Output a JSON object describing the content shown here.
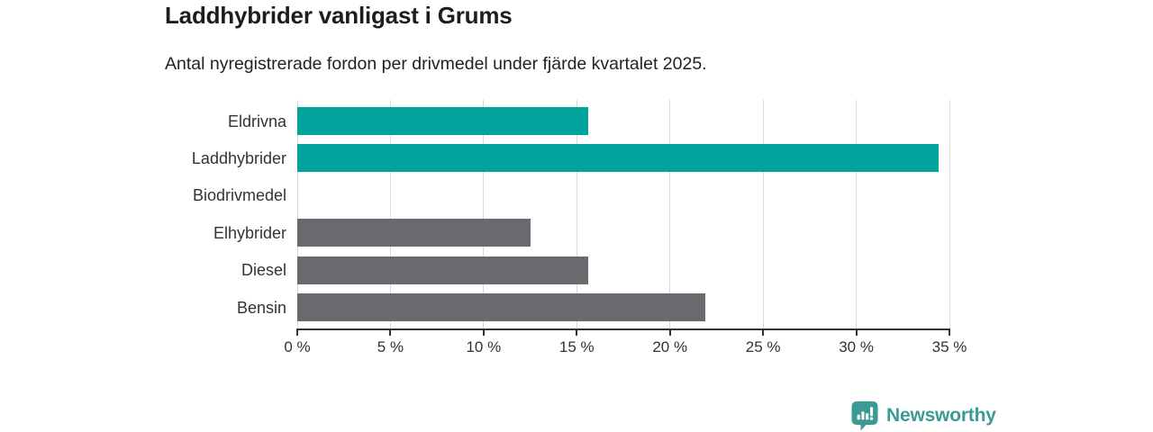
{
  "chart_data": {
    "type": "bar",
    "orientation": "horizontal",
    "title": "Laddhybrider vanligast i Grums",
    "subtitle": "Antal nyregistrerade fordon per drivmedel under fjärde kvartalet 2025.",
    "categories": [
      "Eldrivna",
      "Laddhybrider",
      "Biodrivmedel",
      "Elhybrider",
      "Diesel",
      "Bensin"
    ],
    "values": [
      15.6,
      34.4,
      0,
      12.5,
      15.6,
      21.9
    ],
    "unit": "%",
    "xlim": [
      0,
      35
    ],
    "x_ticks": [
      0,
      5,
      10,
      15,
      20,
      25,
      30,
      35
    ],
    "x_tick_labels": [
      "0 %",
      "5 %",
      "10 %",
      "15 %",
      "20 %",
      "25 %",
      "30 %",
      "35 %"
    ],
    "bar_colors": [
      "#00a49c",
      "#00a49c",
      "#6b686e",
      "#6b686e",
      "#6b686e",
      "#6b686e"
    ],
    "highlight_color": "#00a49c",
    "default_color": "#6b686e",
    "gridlines": true,
    "legend": "none",
    "colors": {
      "grid": "#d9d9d9",
      "axis": "#333333",
      "text": "#333333",
      "title": "#1d1d1d"
    }
  },
  "footer": {
    "brand": "Newsworthy",
    "brand_color": "#3b9b94",
    "logo_icon": "bar-chart-speech-bubble-icon"
  }
}
